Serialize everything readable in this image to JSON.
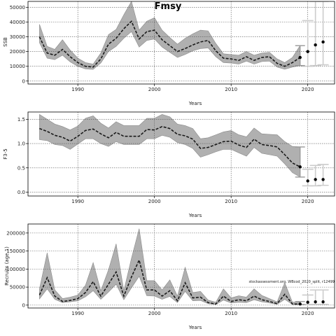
{
  "title": "Fmsy",
  "note": "stockassessment.org, WBcod_2020_split, r12499",
  "colors": {
    "band": "#b0b0b0",
    "band_edge": "#8a8a8a",
    "line": "#1a1a1a",
    "proj": "#cccccc",
    "grid": "#555555"
  },
  "chart_data": [
    {
      "type": "line",
      "ylabel": "SSB",
      "xlabel": "Years",
      "xlim": [
        1983.5,
        2023.5
      ],
      "ylim": [
        -2000,
        54000
      ],
      "xticks": [
        1990,
        2000,
        2010,
        2020
      ],
      "yticks": [
        0,
        10000,
        20000,
        30000,
        40000,
        50000
      ],
      "grid": true,
      "series": [
        {
          "x": [
            1985,
            1986,
            1987,
            1988,
            1989,
            1990,
            1991,
            1992,
            1993,
            1994,
            1995,
            1996,
            1997,
            1998,
            1999,
            2000,
            2001,
            2002,
            2003,
            2004,
            2005,
            2006,
            2007,
            2008,
            2009,
            2010,
            2011,
            2012,
            2013,
            2014,
            2015,
            2016,
            2017,
            2018,
            2019
          ],
          "values": [
            30000,
            19000,
            17500,
            21500,
            16500,
            12500,
            10000,
            9500,
            15000,
            25000,
            29000,
            35500,
            40500,
            28500,
            33500,
            34500,
            28000,
            24000,
            20000,
            22000,
            24500,
            26500,
            27500,
            20500,
            15500,
            15000,
            14000,
            16500,
            14000,
            16000,
            16500,
            12000,
            10000,
            12500,
            16000
          ],
          "lower": [
            26000,
            15500,
            14500,
            17500,
            13000,
            10000,
            8200,
            7900,
            12200,
            20000,
            23500,
            29000,
            33500,
            23000,
            27500,
            28500,
            23000,
            19500,
            16000,
            18000,
            20500,
            22000,
            22500,
            16500,
            12500,
            12200,
            11500,
            13500,
            11500,
            13200,
            13500,
            9500,
            8000,
            9500,
            10500
          ],
          "upper": [
            38500,
            23500,
            21500,
            28000,
            21000,
            15500,
            12500,
            11500,
            19000,
            31500,
            35000,
            45000,
            54000,
            34500,
            40500,
            43000,
            34500,
            29500,
            25000,
            29000,
            32000,
            34500,
            34000,
            25500,
            18500,
            18000,
            17500,
            20000,
            17500,
            19000,
            19500,
            15000,
            12500,
            16000,
            24000
          ]
        }
      ],
      "projection": {
        "x": [
          2020,
          2021,
          2022
        ],
        "values": [
          20000,
          24500,
          26500
        ],
        "lower": [
          10000,
          10500,
          11000
        ],
        "upper": [
          41000,
          54000,
          54000
        ]
      }
    },
    {
      "type": "line",
      "ylabel": "F3-5",
      "xlabel": "Years",
      "xlim": [
        1983.5,
        2023.5
      ],
      "ylim": [
        -0.08,
        1.65
      ],
      "xticks": [
        1990,
        2000,
        2010,
        2020
      ],
      "yticks": [
        0.0,
        0.5,
        1.0,
        1.5
      ],
      "ytick_labels": [
        "0.0",
        "0.5",
        "1.0",
        "1.5"
      ],
      "grid": true,
      "series": [
        {
          "x": [
            1985,
            1986,
            1987,
            1988,
            1989,
            1990,
            1991,
            1992,
            1993,
            1994,
            1995,
            1996,
            1997,
            1998,
            1999,
            2000,
            2001,
            2002,
            2003,
            2004,
            2005,
            2006,
            2007,
            2008,
            2009,
            2010,
            2011,
            2012,
            2013,
            2014,
            2015,
            2016,
            2017,
            2018,
            2019
          ],
          "values": [
            1.31,
            1.25,
            1.17,
            1.13,
            1.05,
            1.15,
            1.27,
            1.3,
            1.2,
            1.12,
            1.23,
            1.15,
            1.15,
            1.15,
            1.29,
            1.28,
            1.35,
            1.31,
            1.19,
            1.16,
            1.09,
            0.9,
            0.92,
            0.98,
            1.04,
            1.05,
            0.97,
            0.92,
            1.09,
            0.98,
            0.96,
            0.93,
            0.77,
            0.6,
            0.52
          ],
          "lower": [
            1.08,
            1.06,
            0.98,
            0.96,
            0.88,
            0.99,
            1.1,
            1.1,
            1.0,
            0.94,
            1.04,
            0.98,
            0.98,
            0.98,
            1.1,
            1.1,
            1.17,
            1.13,
            1.02,
            0.98,
            0.9,
            0.72,
            0.77,
            0.83,
            0.88,
            0.88,
            0.81,
            0.74,
            0.92,
            0.8,
            0.77,
            0.74,
            0.58,
            0.4,
            0.31
          ],
          "upper": [
            1.6,
            1.5,
            1.4,
            1.35,
            1.28,
            1.36,
            1.52,
            1.57,
            1.42,
            1.32,
            1.45,
            1.37,
            1.37,
            1.37,
            1.52,
            1.52,
            1.6,
            1.55,
            1.4,
            1.37,
            1.31,
            1.1,
            1.12,
            1.18,
            1.24,
            1.27,
            1.18,
            1.14,
            1.32,
            1.2,
            1.19,
            1.18,
            1.04,
            0.94,
            0.93
          ]
        }
      ],
      "projection": {
        "x": [
          2020,
          2021,
          2022
        ],
        "values": [
          0.23,
          0.26,
          0.26
        ],
        "lower": [
          0.13,
          0.13,
          0.14
        ],
        "upper": [
          0.47,
          0.55,
          0.57
        ]
      }
    },
    {
      "type": "line",
      "ylabel": "Recruits (age 1)",
      "xlabel": "Years",
      "xlim": [
        1983.5,
        2023.5
      ],
      "ylim": [
        -8000,
        225000
      ],
      "xticks": [
        1990,
        2000,
        2010,
        2020
      ],
      "yticks": [
        0,
        50000,
        100000,
        150000,
        200000
      ],
      "grid": true,
      "series": [
        {
          "x": [
            1985,
            1986,
            1987,
            1988,
            1989,
            1990,
            1991,
            1992,
            1993,
            1994,
            1995,
            1996,
            1997,
            1998,
            1999,
            2000,
            2001,
            2002,
            2003,
            2004,
            2005,
            2006,
            2007,
            2008,
            2009,
            2010,
            2011,
            2012,
            2013,
            2014,
            2015,
            2016,
            2017,
            2018,
            2019
          ],
          "values": [
            28000,
            76000,
            25000,
            10000,
            13000,
            18000,
            35000,
            65000,
            25000,
            58000,
            92000,
            25000,
            78000,
            125000,
            42000,
            42000,
            25000,
            40000,
            12000,
            62000,
            20000,
            22000,
            7000,
            3000,
            25000,
            10000,
            15000,
            12000,
            25000,
            15000,
            10000,
            4000,
            30000,
            3000,
            3000
          ],
          "lower": [
            17000,
            45000,
            16000,
            7000,
            9000,
            12000,
            23000,
            40000,
            16000,
            36000,
            58000,
            15000,
            48000,
            80000,
            26000,
            25000,
            16000,
            24000,
            7000,
            38000,
            12000,
            13000,
            4000,
            1500,
            14000,
            6000,
            8000,
            7000,
            15000,
            9000,
            6000,
            2000,
            16000,
            1500,
            1500
          ],
          "upper": [
            45000,
            145000,
            42000,
            18000,
            22000,
            28000,
            55000,
            118000,
            40000,
            98000,
            170000,
            40000,
            130000,
            212000,
            68000,
            68000,
            42000,
            70000,
            25000,
            105000,
            35000,
            38000,
            14000,
            8000,
            45000,
            20000,
            26000,
            22000,
            45000,
            27000,
            18000,
            9000,
            62000,
            8000,
            10000
          ]
        }
      ],
      "projection": {
        "x": [
          2020,
          2021,
          2022
        ],
        "values": [
          8000,
          9000,
          9000
        ],
        "lower": [
          2000,
          2000,
          2000
        ],
        "upper": [
          28000,
          42000,
          42000
        ]
      }
    }
  ]
}
